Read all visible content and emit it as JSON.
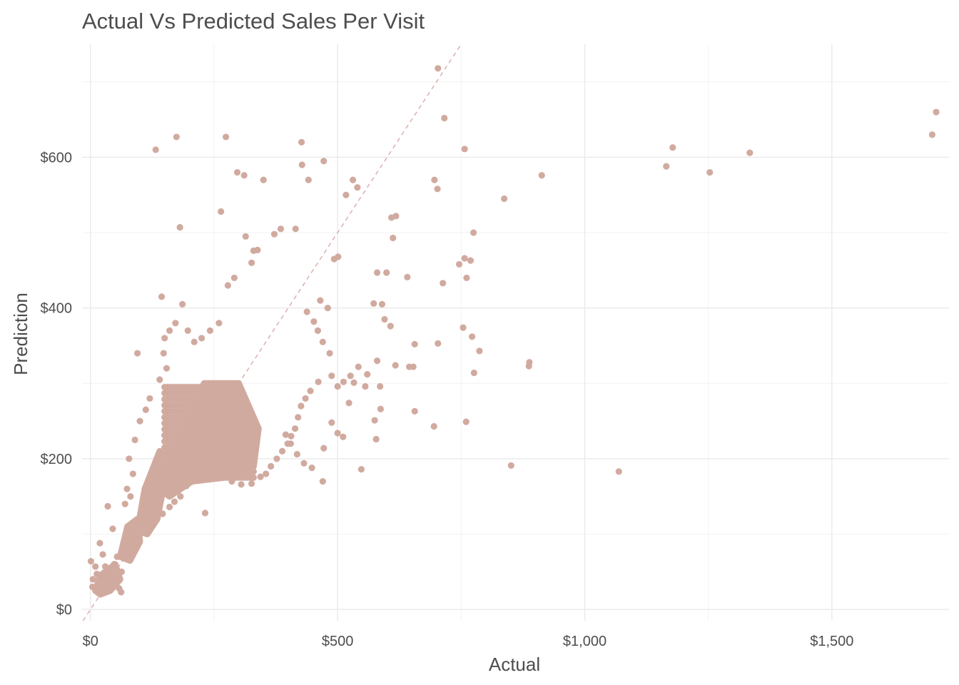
{
  "chart_data": {
    "type": "scatter",
    "title": "Actual Vs Predicted Sales Per Visit",
    "xlabel": "Actual",
    "ylabel": "Prediction",
    "xlim": [
      -17,
      1737
    ],
    "ylim": [
      -15,
      750
    ],
    "x_ticks": [
      0,
      500,
      1000,
      1500
    ],
    "x_tick_labels": [
      "$0",
      "$500",
      "$1,000",
      "$1,500"
    ],
    "y_ticks": [
      0,
      200,
      400,
      600
    ],
    "y_tick_labels": [
      "$0",
      "$200",
      "$400",
      "$600"
    ],
    "reference_line": {
      "type": "y=x",
      "style": "dashed",
      "color": "#d7a5a1"
    },
    "point_color": "#d1aa9f",
    "grid": true,
    "series": [
      {
        "values": [
          [
            1711,
            660
          ],
          [
            1703,
            630
          ],
          [
            1334,
            606
          ],
          [
            1253,
            580
          ],
          [
            1178,
            613
          ],
          [
            1165,
            588
          ],
          [
            913,
            576
          ],
          [
            837,
            545
          ],
          [
            1069,
            183
          ],
          [
            851,
            191
          ],
          [
            888,
            328
          ],
          [
            887,
            323
          ],
          [
            703,
            718
          ],
          [
            716,
            652
          ],
          [
            757,
            611
          ],
          [
            696,
            570
          ],
          [
            702,
            558
          ],
          [
            775,
            500
          ],
          [
            757,
            466
          ],
          [
            769,
            463
          ],
          [
            746,
            458
          ],
          [
            761,
            440
          ],
          [
            713,
            433
          ],
          [
            754,
            374
          ],
          [
            772,
            362
          ],
          [
            703,
            353
          ],
          [
            787,
            343
          ],
          [
            776,
            314
          ],
          [
            695,
            243
          ],
          [
            760,
            249
          ],
          [
            656,
            352
          ],
          [
            653,
            322
          ],
          [
            645,
            322
          ],
          [
            656,
            263
          ],
          [
            641,
            441
          ],
          [
            618,
            522
          ],
          [
            609,
            520
          ],
          [
            612,
            493
          ],
          [
            617,
            324
          ],
          [
            599,
            447
          ],
          [
            580,
            447
          ],
          [
            573,
            406
          ],
          [
            590,
            405
          ],
          [
            595,
            385
          ],
          [
            607,
            376
          ],
          [
            580,
            330
          ],
          [
            586,
            296
          ],
          [
            587,
            266
          ],
          [
            575,
            251
          ],
          [
            578,
            226
          ],
          [
            548,
            186
          ],
          [
            540,
            560
          ],
          [
            531,
            570
          ],
          [
            517,
            550
          ],
          [
            501,
            468
          ],
          [
            493,
            465
          ],
          [
            472,
            595
          ],
          [
            428,
            590
          ],
          [
            441,
            570
          ],
          [
            427,
            620
          ],
          [
            415,
            505
          ],
          [
            385,
            505
          ],
          [
            372,
            498
          ],
          [
            350,
            570
          ],
          [
            311,
            576
          ],
          [
            297,
            580
          ],
          [
            274,
            627
          ],
          [
            174,
            627
          ],
          [
            132,
            610
          ],
          [
            181,
            507
          ],
          [
            264,
            528
          ],
          [
            314,
            495
          ],
          [
            338,
            477
          ],
          [
            330,
            476
          ],
          [
            326,
            460
          ],
          [
            291,
            440
          ],
          [
            278,
            430
          ],
          [
            260,
            380
          ],
          [
            242,
            370
          ],
          [
            225,
            360
          ],
          [
            210,
            355
          ],
          [
            197,
            370
          ],
          [
            186,
            405
          ],
          [
            172,
            380
          ],
          [
            160,
            370
          ],
          [
            150,
            360
          ],
          [
            144,
            415
          ],
          [
            148,
            340
          ],
          [
            154,
            320
          ],
          [
            140,
            305
          ],
          [
            95,
            340
          ],
          [
            120,
            280
          ],
          [
            112,
            265
          ],
          [
            100,
            250
          ],
          [
            90,
            225
          ],
          [
            78,
            200
          ],
          [
            86,
            180
          ],
          [
            74,
            160
          ],
          [
            70,
            140
          ],
          [
            81,
            150
          ],
          [
            35,
            137
          ],
          [
            45,
            107
          ],
          [
            19,
            88
          ],
          [
            25,
            73
          ],
          [
            10,
            57
          ],
          [
            5,
            40
          ],
          [
            4,
            30
          ],
          [
            22,
            23
          ],
          [
            54,
            70
          ],
          [
            48,
            43
          ],
          [
            62,
            23
          ],
          [
            30,
            57
          ],
          [
            36,
            48
          ],
          [
            58,
            28
          ],
          [
            48,
            60
          ],
          [
            63,
            50
          ],
          [
            13,
            47
          ],
          [
            18,
            25
          ],
          [
            1,
            64
          ],
          [
            65,
            82
          ],
          [
            465,
            410
          ],
          [
            480,
            400
          ],
          [
            438,
            395
          ],
          [
            452,
            382
          ],
          [
            460,
            370
          ],
          [
            470,
            355
          ],
          [
            484,
            340
          ],
          [
            488,
            310
          ],
          [
            461,
            302
          ],
          [
            445,
            290
          ],
          [
            435,
            280
          ],
          [
            426,
            270
          ],
          [
            420,
            255
          ],
          [
            414,
            240
          ],
          [
            406,
            230
          ],
          [
            399,
            220
          ],
          [
            388,
            210
          ],
          [
            377,
            200
          ],
          [
            365,
            190
          ],
          [
            355,
            180
          ],
          [
            344,
            176
          ],
          [
            326,
            167
          ],
          [
            305,
            166
          ],
          [
            286,
            170
          ],
          [
            266,
            178
          ],
          [
            246,
            180
          ],
          [
            228,
            185
          ],
          [
            209,
            176
          ],
          [
            194,
            164
          ],
          [
            182,
            150
          ],
          [
            170,
            143
          ],
          [
            160,
            136
          ],
          [
            146,
            127
          ],
          [
            232,
            128
          ],
          [
            472,
            214
          ],
          [
            488,
            248
          ],
          [
            500,
            234
          ],
          [
            511,
            229
          ],
          [
            523,
            274
          ],
          [
            533,
            301
          ],
          [
            556,
            296
          ],
          [
            560,
            312
          ],
          [
            542,
            322
          ],
          [
            526,
            310
          ],
          [
            512,
            302
          ],
          [
            500,
            296
          ],
          [
            470,
            170
          ],
          [
            448,
            188
          ],
          [
            432,
            194
          ],
          [
            418,
            206
          ],
          [
            405,
            220
          ],
          [
            395,
            232
          ]
        ]
      }
    ]
  }
}
